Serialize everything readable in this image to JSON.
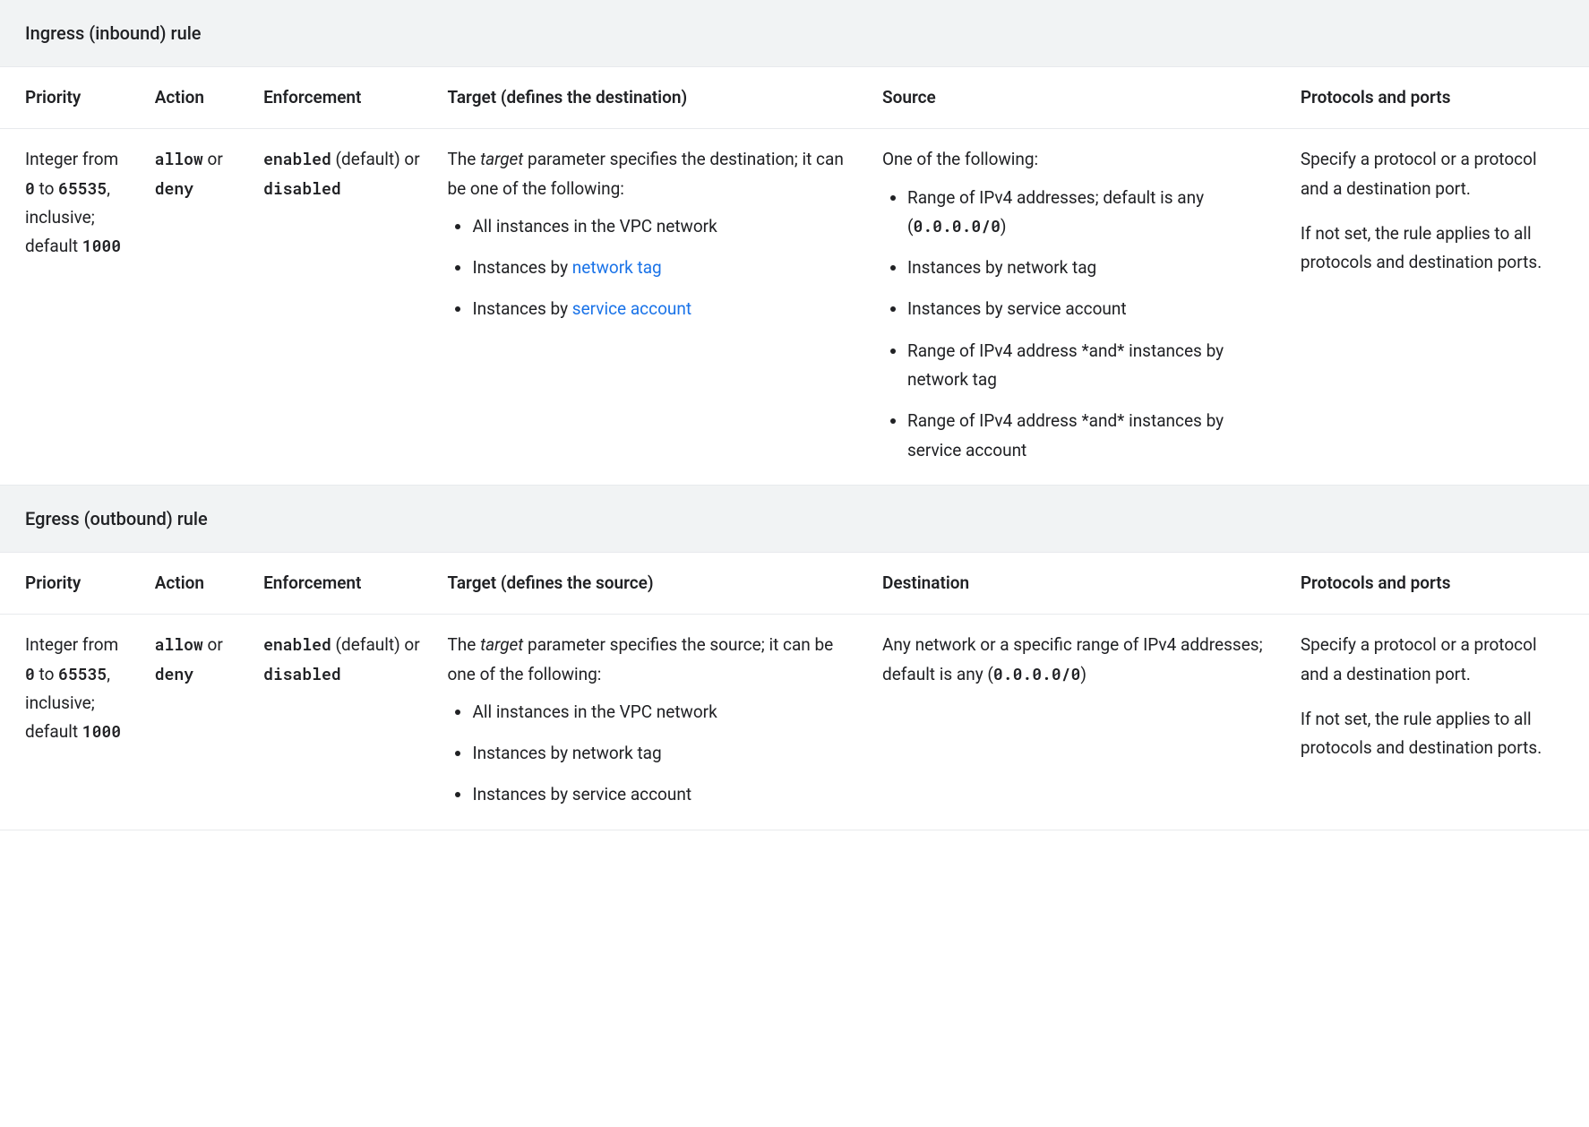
{
  "colors": {
    "section_bg": "#f1f3f4",
    "border": "#e8eaed",
    "text": "#202124",
    "link": "#1a73e8"
  },
  "sections": {
    "ingress": {
      "title": "Ingress (inbound) rule",
      "headers": {
        "priority": "Priority",
        "action": "Action",
        "enforcement": "Enforcement",
        "target": "Target (defines the destination)",
        "source": "Source",
        "protocols": "Protocols and ports"
      },
      "cells": {
        "priority": {
          "pre": "Integer from ",
          "min": "0",
          "mid": " to ",
          "max": "65535",
          "post1": ", inclusive; default ",
          "default": "1000"
        },
        "action": {
          "allow": "allow",
          "or": " or ",
          "deny": "deny"
        },
        "enforcement": {
          "enabled": "enabled",
          "mid": " (default) or ",
          "disabled": "disabled"
        },
        "target": {
          "intro_pre": "The ",
          "intro_em": "target",
          "intro_post": " parameter specifies the destination; it can be one of the following:",
          "items": {
            "a": "All instances in the VPC network",
            "b_pre": "Instances by ",
            "b_link": "network tag",
            "c_pre": "Instances by ",
            "c_link": "service account"
          }
        },
        "source": {
          "intro": "One of the following:",
          "items": {
            "a_pre": "Range of IPv4 addresses; default is any (",
            "a_code": "0.0.0.0/0",
            "a_post": ")",
            "b": "Instances by network tag",
            "c": "Instances by service account",
            "d": "Range of IPv4 address *and* instances by network tag",
            "e": "Range of IPv4 address *and* instances by service account"
          }
        },
        "protocols": {
          "p1": "Specify a protocol or a protocol and a destination port.",
          "p2": "If not set, the rule applies to all protocols and destination ports."
        }
      }
    },
    "egress": {
      "title": "Egress (outbound) rule",
      "headers": {
        "priority": "Priority",
        "action": "Action",
        "enforcement": "Enforcement",
        "target": "Target (defines the source)",
        "destination": "Destination",
        "protocols": "Protocols and ports"
      },
      "cells": {
        "priority": {
          "pre": "Integer from ",
          "min": "0",
          "mid": " to ",
          "max": "65535",
          "post1": ", inclusive; default ",
          "default": "1000"
        },
        "action": {
          "allow": "allow",
          "or": " or ",
          "deny": "deny"
        },
        "enforcement": {
          "enabled": "enabled",
          "mid": " (default) or ",
          "disabled": "disabled"
        },
        "target": {
          "intro_pre": "The ",
          "intro_em": "target",
          "intro_post": " parameter specifies the source; it can be one of the following:",
          "items": {
            "a": "All instances in the VPC network",
            "b": "Instances by network tag",
            "c": "Instances by service account"
          }
        },
        "destination": {
          "pre": "Any network or a specific range of IPv4 addresses; default is any (",
          "code": "0.0.0.0/0",
          "post": ")"
        },
        "protocols": {
          "p1": "Specify a protocol or a protocol and a destination port.",
          "p2": "If not set, the rule applies to all protocols and destination ports."
        }
      }
    }
  }
}
